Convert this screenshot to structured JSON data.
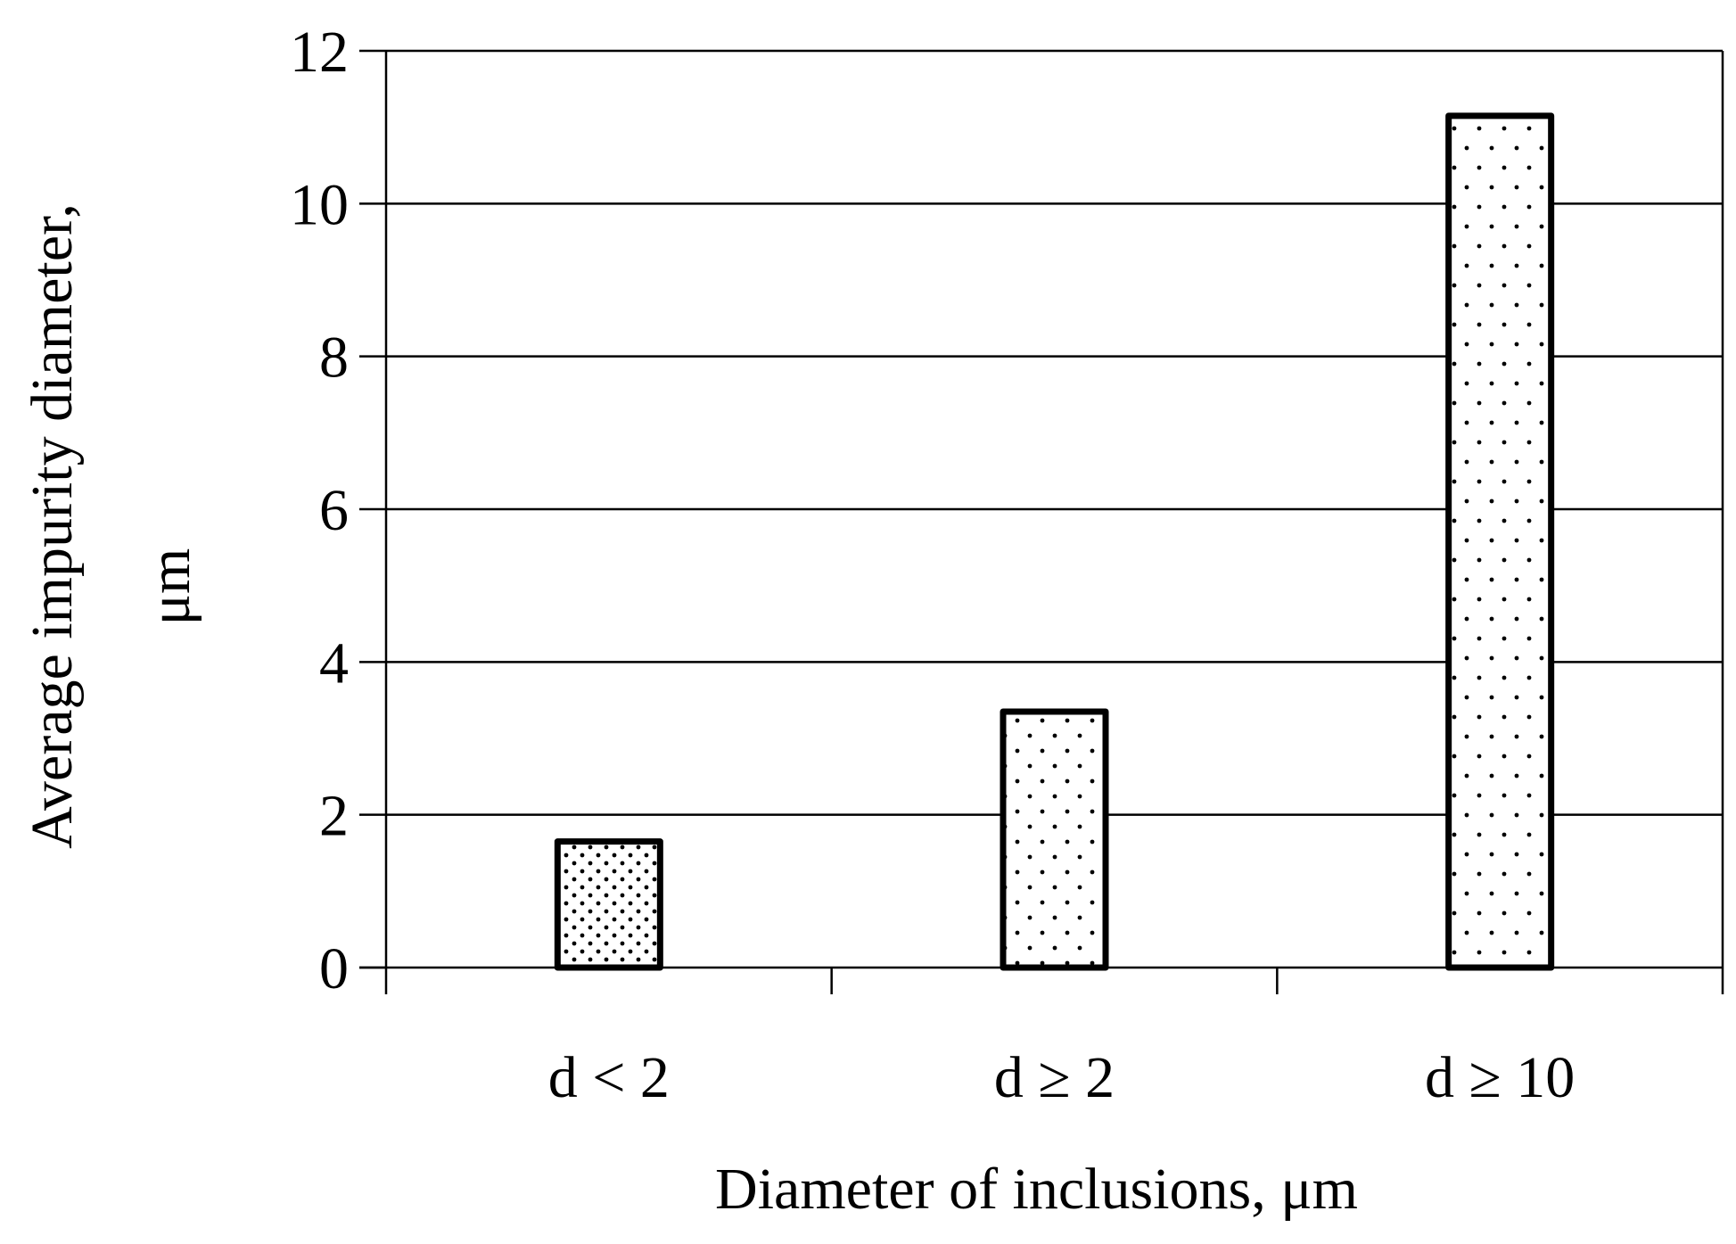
{
  "chart_data": {
    "type": "bar",
    "title": "",
    "xlabel": "Diameter of inclusions, μm",
    "ylabel_lines": [
      "Average impurity diameter,",
      "μm"
    ],
    "categories": [
      "d < 2",
      "d ≥ 2",
      "d ≥ 10"
    ],
    "series": [
      {
        "values": [
          1.65,
          3.35,
          11.15
        ]
      }
    ],
    "ylim": [
      0,
      12
    ],
    "yticks": [
      0,
      2,
      4,
      6,
      8,
      10,
      12
    ],
    "grid": true,
    "legend": "none",
    "bar_fill_pattern": "dots",
    "colors": {
      "bar_fill": "#ffffff",
      "bar_stroke": "#000000",
      "dot": "#000000",
      "grid": "#000000",
      "axis": "#000000"
    }
  }
}
